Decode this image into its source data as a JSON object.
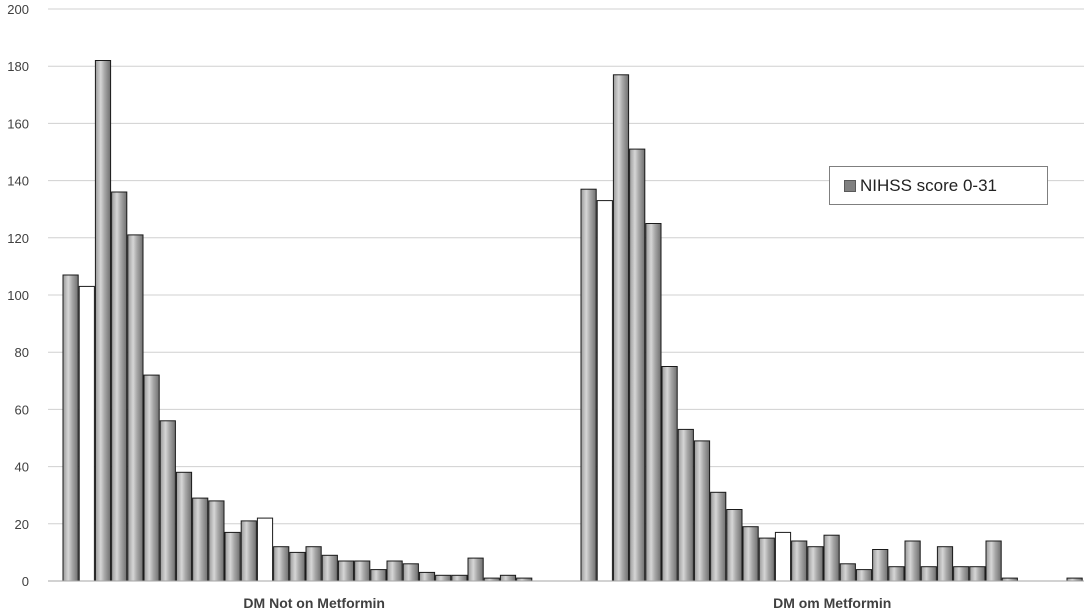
{
  "chart_data": {
    "type": "bar",
    "ylim": [
      0,
      200
    ],
    "yticks": [
      0,
      20,
      40,
      60,
      80,
      100,
      120,
      140,
      160,
      180,
      200
    ],
    "grid": true,
    "legend": {
      "position": "top-right",
      "label": "NIHSS score 0-31"
    },
    "groups": [
      {
        "label": "DM Not on Metformin",
        "values": [
          107,
          103,
          182,
          136,
          121,
          72,
          56,
          38,
          29,
          28,
          17,
          21,
          22,
          12,
          10,
          12,
          9,
          7,
          7,
          4,
          7,
          6,
          3,
          2,
          2,
          8,
          1,
          2,
          1,
          0,
          0,
          0
        ],
        "white_indices": [
          1,
          12
        ]
      },
      {
        "label": "DM om Metformin",
        "values": [
          137,
          133,
          177,
          151,
          125,
          75,
          53,
          49,
          31,
          25,
          19,
          15,
          17,
          14,
          12,
          16,
          6,
          4,
          11,
          5,
          14,
          5,
          12,
          5,
          5,
          14,
          1,
          0,
          0,
          0,
          1,
          0
        ],
        "white_indices": [
          1,
          12
        ]
      }
    ],
    "colors": {
      "bar": "#808080",
      "bar_highlight": "#d9d9d9",
      "bar_alt": "#ffffff",
      "grid": "#d0d0d0",
      "axis": "#a6a6a6"
    }
  }
}
